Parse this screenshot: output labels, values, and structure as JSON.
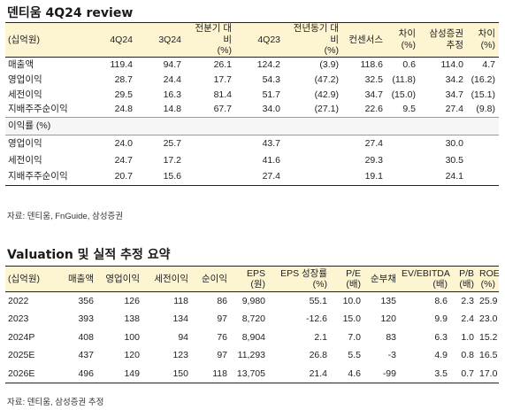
{
  "table1": {
    "title": "덴티움 4Q24 review",
    "headers": [
      [
        "(십억원)"
      ],
      [
        "4Q24"
      ],
      [
        "3Q24"
      ],
      [
        "전분기 대비",
        "(%)"
      ],
      [
        "4Q23"
      ],
      [
        "전년동기 대비",
        "(%)"
      ],
      [
        "컨센서스"
      ],
      [
        "차이",
        "(%)"
      ],
      [
        "삼성증권",
        "추정"
      ],
      [
        "차이",
        "(%)"
      ]
    ],
    "rows": [
      [
        "매출액",
        "119.4",
        "94.7",
        "26.1",
        "124.2",
        "(3.9)",
        "118.6",
        "0.6",
        "114.0",
        "4.7"
      ],
      [
        "영업이익",
        "28.7",
        "24.4",
        "17.7",
        "54.3",
        "(47.2)",
        "32.5",
        "(11.8)",
        "34.2",
        "(16.2)"
      ],
      [
        "세전이익",
        "29.5",
        "16.3",
        "81.4",
        "51.7",
        "(42.9)",
        "34.7",
        "(15.0)",
        "34.7",
        "(15.1)"
      ],
      [
        "지배주주순이익",
        "24.8",
        "14.8",
        "67.7",
        "34.0",
        "(27.1)",
        "22.6",
        "9.5",
        "27.4",
        "(9.8)"
      ]
    ],
    "section_label": "이익률 (%)",
    "margin_rows": [
      [
        "영업이익",
        "24.0",
        "25.7",
        "",
        "43.7",
        "",
        "27.4",
        "",
        "30.0",
        ""
      ],
      [
        "세전이익",
        "24.7",
        "17.2",
        "",
        "41.6",
        "",
        "29.3",
        "",
        "30.5",
        ""
      ],
      [
        "지배주주순이익",
        "20.7",
        "15.6",
        "",
        "27.4",
        "",
        "19.1",
        "",
        "24.1",
        ""
      ]
    ],
    "source": "자료: 덴티움, FnGuide, 삼성증권"
  },
  "table2": {
    "title": "Valuation 및 실적 추정 요약",
    "headers": [
      [
        "(십억원)"
      ],
      [
        "매출액"
      ],
      [
        "영업이익"
      ],
      [
        "세전이익"
      ],
      [
        "순이익"
      ],
      [
        "EPS",
        "(원)"
      ],
      [
        "EPS 성장률",
        "(%)"
      ],
      [
        "P/E",
        "(배)"
      ],
      [
        "순부채"
      ],
      [
        "EV/EBITDA",
        "(배)"
      ],
      [
        "P/B",
        "(배)"
      ],
      [
        "ROE",
        "(%)"
      ]
    ],
    "rows": [
      [
        "2022",
        "356",
        "126",
        "118",
        "86",
        "9,980",
        "55.1",
        "10.0",
        "135",
        "8.6",
        "2.3",
        "25.9"
      ],
      [
        "2023",
        "393",
        "138",
        "134",
        "97",
        "8,720",
        "-12.6",
        "15.0",
        "120",
        "9.9",
        "2.4",
        "23.0"
      ],
      [
        "2024P",
        "408",
        "100",
        "94",
        "76",
        "8,904",
        "2.1",
        "7.0",
        "83",
        "6.3",
        "1.0",
        "15.2"
      ],
      [
        "2025E",
        "437",
        "120",
        "123",
        "97",
        "11,293",
        "26.8",
        "5.5",
        "-3",
        "4.9",
        "0.8",
        "16.5"
      ],
      [
        "2026E",
        "496",
        "149",
        "150",
        "118",
        "13,705",
        "21.4",
        "4.6",
        "-99",
        "3.5",
        "0.7",
        "17.0"
      ]
    ],
    "source": "자료: 덴티움, 삼성증권 추정"
  }
}
